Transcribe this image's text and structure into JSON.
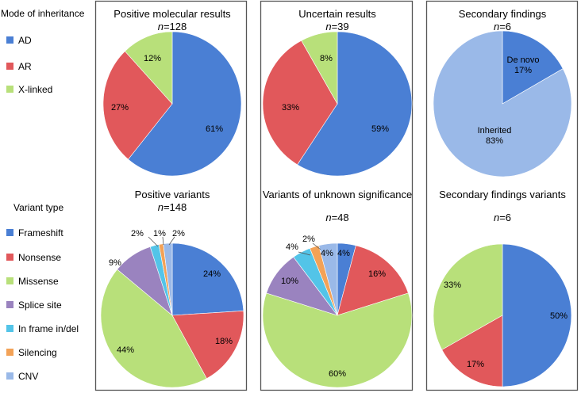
{
  "colors": {
    "blue": "#4A7FD4",
    "red": "#E1585B",
    "green": "#B8E07A",
    "purple": "#9A83BF",
    "cyan": "#53C4E8",
    "orange": "#F3A257",
    "light_blue": "#9AB9E8",
    "panel_border": "#555555"
  },
  "legends": {
    "inheritance": {
      "title": "Mode of inheritance",
      "items": [
        {
          "label": "AD",
          "color": "#4A7FD4"
        },
        {
          "label": "AR",
          "color": "#E1585B"
        },
        {
          "label": "X-linked",
          "color": "#B8E07A"
        }
      ]
    },
    "variant": {
      "title": "Variant type",
      "items": [
        {
          "label": "Frameshift",
          "color": "#4A7FD4"
        },
        {
          "label": "Nonsense",
          "color": "#E1585B"
        },
        {
          "label": "Missense",
          "color": "#B8E07A"
        },
        {
          "label": "Splice site",
          "color": "#9A83BF"
        },
        {
          "label": "In frame in/del",
          "color": "#53C4E8"
        },
        {
          "label": "Silencing",
          "color": "#F3A257"
        },
        {
          "label": "CNV",
          "color": "#9AB9E8"
        }
      ]
    }
  },
  "chart_data": [
    {
      "type": "pie",
      "title": "Positive molecular results",
      "n_label": "n",
      "n_value": "=128",
      "slices": [
        {
          "name": "AD",
          "value": 61,
          "label": "61%",
          "color": "#4A7FD4"
        },
        {
          "name": "AR",
          "value": 27,
          "label": "27%",
          "color": "#E1585B"
        },
        {
          "name": "X-linked",
          "value": 12,
          "label": "12%",
          "color": "#B8E07A"
        }
      ]
    },
    {
      "type": "pie",
      "title": "Uncertain results",
      "n_label": "n",
      "n_value": "=39",
      "slices": [
        {
          "name": "AD",
          "value": 59,
          "label": "59%",
          "color": "#4A7FD4"
        },
        {
          "name": "AR",
          "value": 33,
          "label": "33%",
          "color": "#E1585B"
        },
        {
          "name": "X-linked",
          "value": 8,
          "label": "8%",
          "color": "#B8E07A"
        }
      ]
    },
    {
      "type": "pie",
      "title": "Secondary findings",
      "n_label": "n",
      "n_value": "=6",
      "slices": [
        {
          "name": "De novo",
          "value": 17,
          "label": "De novo\n17%",
          "color": "#4A7FD4"
        },
        {
          "name": "Inherited",
          "value": 83,
          "label": "Inherited\n83%",
          "color": "#9AB9E8"
        }
      ]
    },
    {
      "type": "pie",
      "title": "Positive variants",
      "n_label": "n",
      "n_value": "=148",
      "slices": [
        {
          "name": "Frameshift",
          "value": 24,
          "label": "24%",
          "color": "#4A7FD4"
        },
        {
          "name": "Nonsense",
          "value": 18,
          "label": "18%",
          "color": "#E1585B"
        },
        {
          "name": "Missense",
          "value": 44,
          "label": "44%",
          "color": "#B8E07A"
        },
        {
          "name": "Splice site",
          "value": 9,
          "label": "9%",
          "color": "#9A83BF"
        },
        {
          "name": "In frame in/del",
          "value": 2,
          "label": "2%",
          "color": "#53C4E8"
        },
        {
          "name": "Silencing",
          "value": 1,
          "label": "1%",
          "color": "#F3A257"
        },
        {
          "name": "CNV",
          "value": 2,
          "label": "2%",
          "color": "#9AB9E8"
        }
      ]
    },
    {
      "type": "pie",
      "title": "Variants of unknown significance",
      "n_label": "n",
      "n_value": "=48",
      "slices": [
        {
          "name": "Frameshift",
          "value": 4,
          "label": "4%",
          "color": "#4A7FD4"
        },
        {
          "name": "Nonsense",
          "value": 16,
          "label": "16%",
          "color": "#E1585B"
        },
        {
          "name": "Missense",
          "value": 60,
          "label": "60%",
          "color": "#B8E07A"
        },
        {
          "name": "Splice site",
          "value": 10,
          "label": "10%",
          "color": "#9A83BF"
        },
        {
          "name": "In frame in/del",
          "value": 4,
          "label": "4%",
          "color": "#53C4E8"
        },
        {
          "name": "Silencing",
          "value": 2,
          "label": "2%",
          "color": "#F3A257"
        },
        {
          "name": "CNV",
          "value": 4,
          "label": "4%",
          "color": "#9AB9E8"
        }
      ]
    },
    {
      "type": "pie",
      "title": "Secondary findings variants",
      "n_label": "n",
      "n_value": "=6",
      "slices": [
        {
          "name": "Frameshift",
          "value": 50,
          "label": "50%",
          "color": "#4A7FD4"
        },
        {
          "name": "Nonsense",
          "value": 17,
          "label": "17%",
          "color": "#E1585B"
        },
        {
          "name": "Missense",
          "value": 33,
          "label": "33%",
          "color": "#B8E07A"
        }
      ]
    }
  ]
}
